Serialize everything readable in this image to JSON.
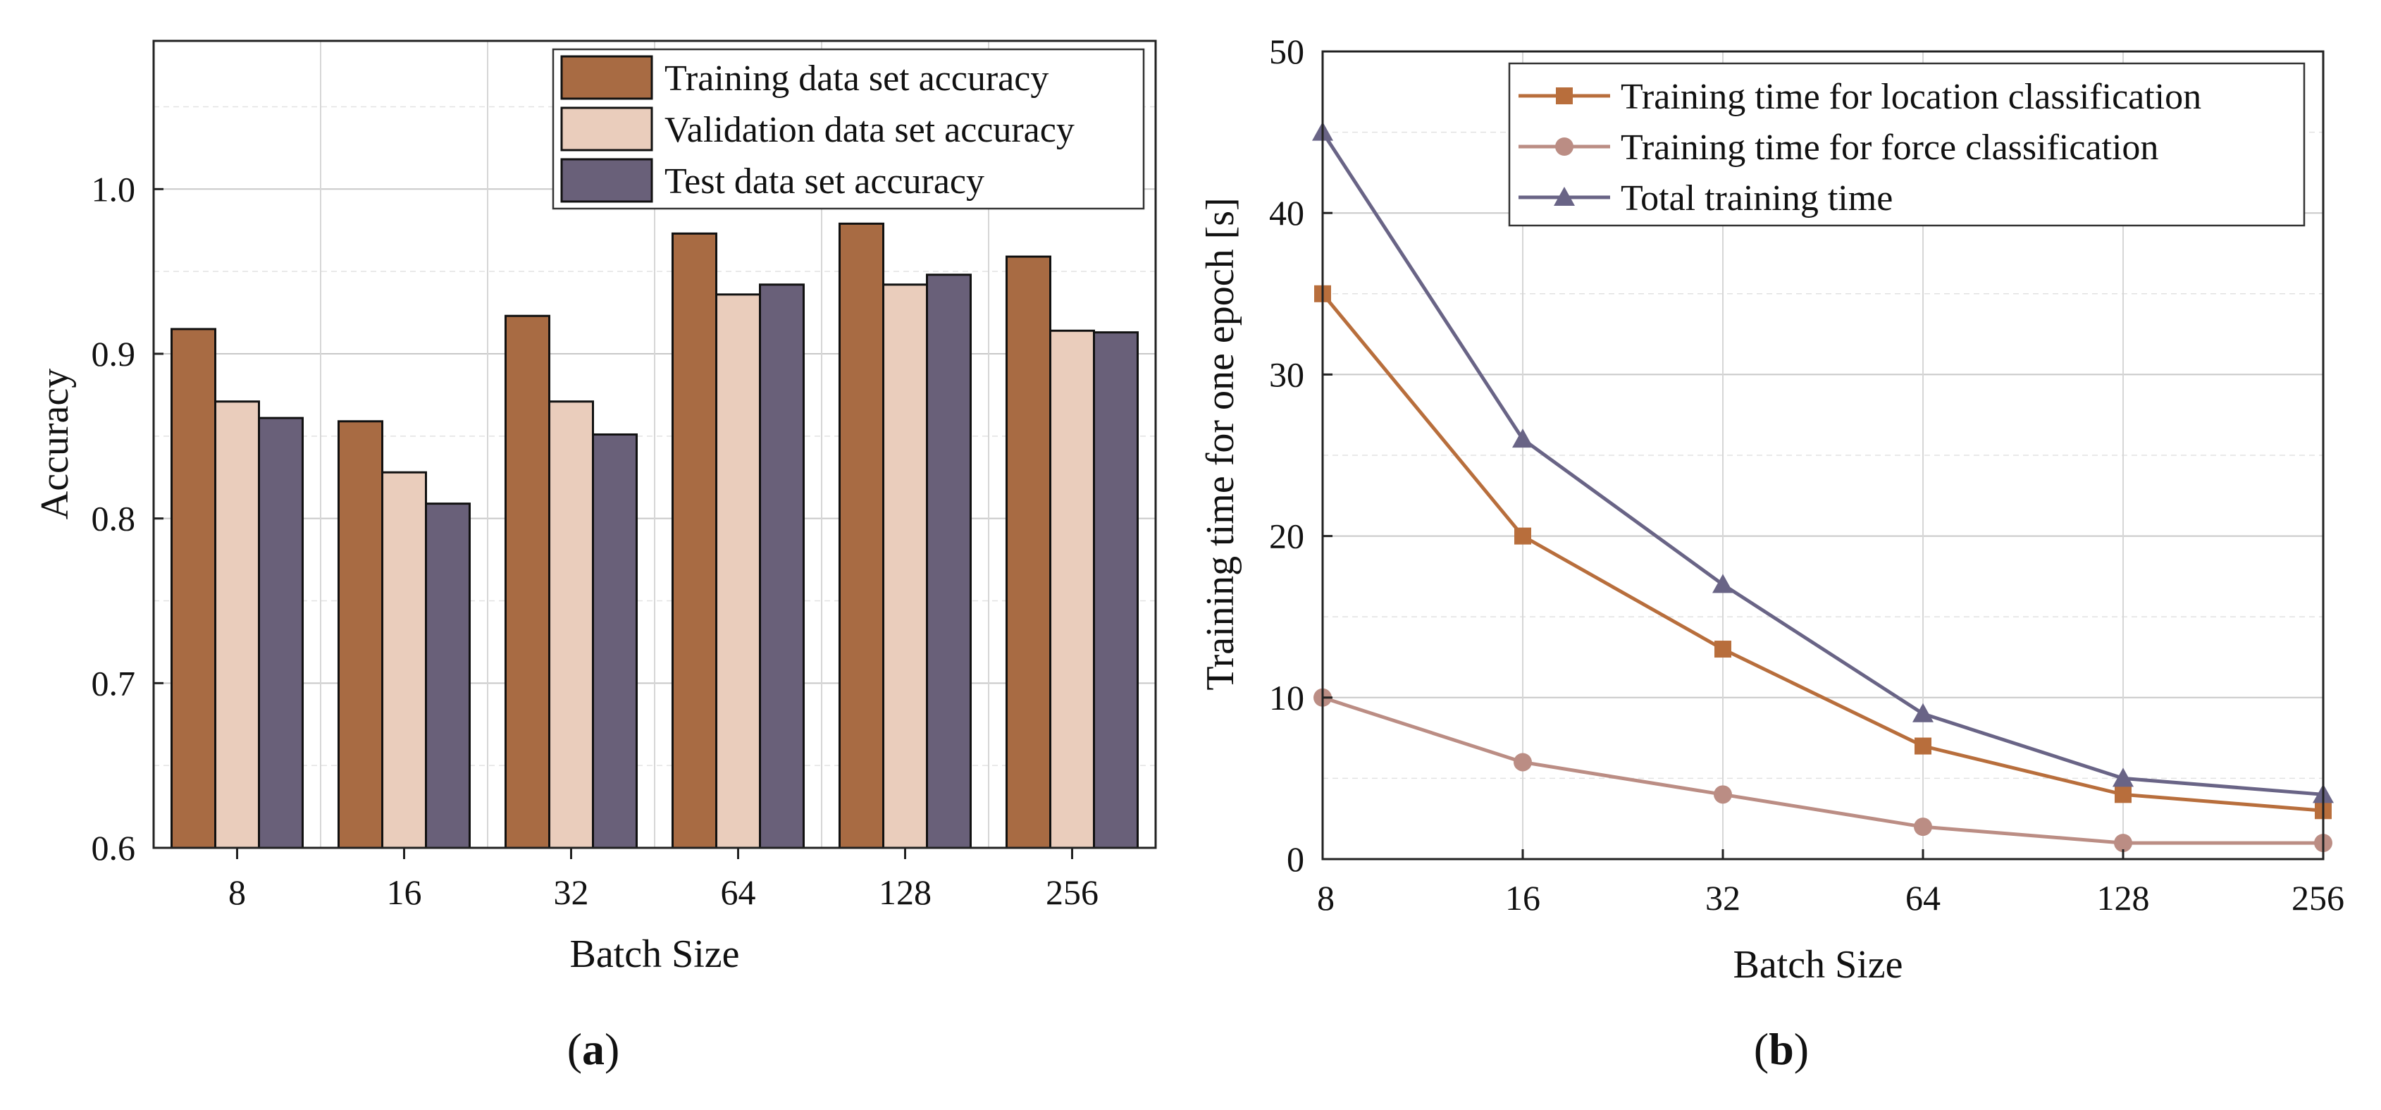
{
  "colors": {
    "training_bar": "#A86B43",
    "validation_bar": "#EACDBC",
    "test_bar": "#696079",
    "location_line": "#B86E3C",
    "force_line": "#BB8D84",
    "total_line": "#696486"
  },
  "chart_data": [
    {
      "type": "bar",
      "panel_label": {
        "open": "(",
        "letter": "a",
        "close": ")"
      },
      "categories": [
        "8",
        "16",
        "32",
        "64",
        "128",
        "256"
      ],
      "series": [
        {
          "name": "Training data set accuracy",
          "values": [
            0.915,
            0.859,
            0.923,
            0.973,
            0.979,
            0.959
          ]
        },
        {
          "name": "Validation data set accuracy",
          "values": [
            0.871,
            0.828,
            0.871,
            0.936,
            0.942,
            0.914
          ]
        },
        {
          "name": "Test data set accuracy",
          "values": [
            0.861,
            0.809,
            0.851,
            0.942,
            0.948,
            0.913
          ]
        }
      ],
      "xlabel": "Batch Size",
      "ylabel": "Accuracy",
      "ylim": [
        0.6,
        1.09
      ],
      "yticks": [
        "0.6",
        "0.7",
        "0.8",
        "0.9",
        "1.0"
      ],
      "ytick_values": [
        0.6,
        0.7,
        0.8,
        0.9,
        1.0
      ],
      "grid": true,
      "legend_position": "top-right"
    },
    {
      "type": "line",
      "panel_label": {
        "open": "(",
        "letter": "b",
        "close": ")"
      },
      "categories": [
        "8",
        "16",
        "32",
        "64",
        "128",
        "256"
      ],
      "series": [
        {
          "name": "Training time for location classification",
          "marker": "square",
          "values": [
            35,
            20,
            13,
            7,
            4,
            3
          ]
        },
        {
          "name": "Training time for force classification",
          "marker": "circle",
          "values": [
            10,
            6,
            4,
            2,
            1,
            1
          ]
        },
        {
          "name": "Total training time",
          "marker": "triangle",
          "values": [
            45,
            26,
            17,
            9,
            5,
            4
          ]
        }
      ],
      "xlabel": "Batch Size",
      "ylabel": "Training time for one epoch [s]",
      "ylim": [
        0,
        50
      ],
      "yticks": [
        "0",
        "10",
        "20",
        "30",
        "40",
        "50"
      ],
      "ytick_values": [
        0,
        10,
        20,
        30,
        40,
        50
      ],
      "grid": true,
      "legend_position": "top-right"
    }
  ]
}
